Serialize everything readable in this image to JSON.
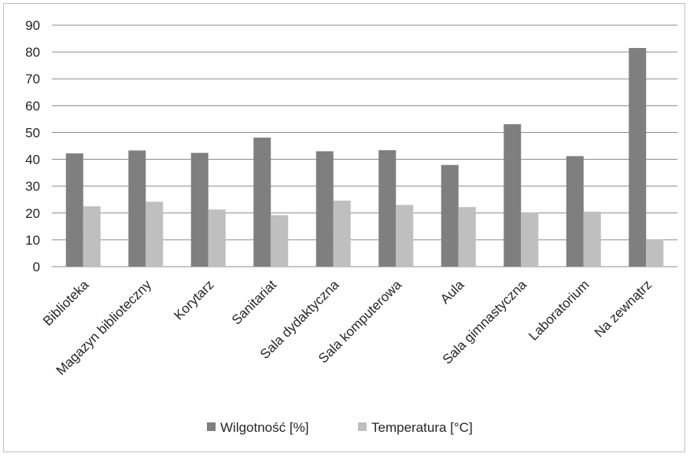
{
  "chart_data": {
    "type": "bar",
    "categories": [
      "Biblioteka",
      "Magazyn biblioteczny",
      "Korytarz",
      "Sanitariat",
      "Sala dydaktyczna",
      "Sala komputerowa",
      "Aula",
      "Sala gimnastyczna",
      "Laboratorium",
      "Na zewnątrz"
    ],
    "series": [
      {
        "name": "Wilgotność [%]",
        "color": "#7f7f80",
        "values": [
          42.2,
          43.3,
          42.4,
          48.1,
          43.0,
          43.4,
          37.9,
          53.1,
          41.2,
          81.5
        ]
      },
      {
        "name": "Temperatura [°C]",
        "color": "#bfbfc0",
        "values": [
          22.5,
          24.2,
          21.3,
          19.2,
          24.6,
          23.0,
          22.2,
          20.2,
          20.5,
          10.2
        ]
      }
    ],
    "ylim": [
      0,
      90
    ],
    "yticks": [
      "0",
      "10",
      "20",
      "30",
      "40",
      "50",
      "60",
      "70",
      "80",
      "90"
    ],
    "grid": true,
    "legend_position": "bottom"
  }
}
